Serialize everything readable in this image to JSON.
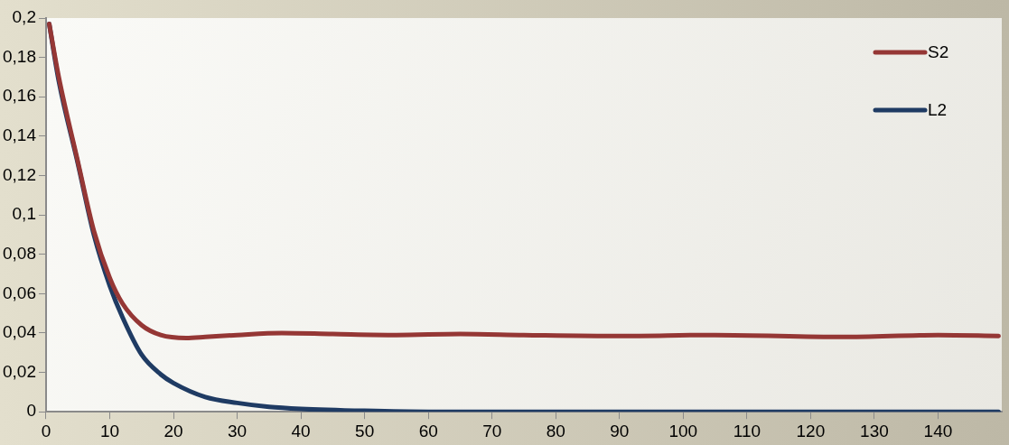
{
  "chart_data": {
    "type": "line",
    "xlim": [
      0,
      150
    ],
    "ylim": [
      0,
      0.2
    ],
    "xticks": [
      0,
      10,
      20,
      30,
      40,
      50,
      60,
      70,
      80,
      90,
      100,
      110,
      120,
      130,
      140
    ],
    "yticks": [
      {
        "value": 0,
        "label": "0"
      },
      {
        "value": 0.02,
        "label": "0,02"
      },
      {
        "value": 0.04,
        "label": "0,04"
      },
      {
        "value": 0.06,
        "label": "0,06"
      },
      {
        "value": 0.08,
        "label": "0,08"
      },
      {
        "value": 0.1,
        "label": "0,1"
      },
      {
        "value": 0.12,
        "label": "0,12"
      },
      {
        "value": 0.14,
        "label": "0,14"
      },
      {
        "value": 0.16,
        "label": "0,16"
      },
      {
        "value": 0.18,
        "label": "0,18"
      },
      {
        "value": 0.2,
        "label": "0,2"
      }
    ],
    "grid": false,
    "legend": "top right",
    "marker": "none",
    "line_style": "solid",
    "series": [
      {
        "name": "S2",
        "color": "#953735",
        "x": [
          0.5,
          2,
          5,
          7.5,
          10,
          12,
          15,
          18,
          22,
          25,
          30,
          37,
          45,
          55,
          65,
          75,
          90,
          105,
          125,
          140,
          149.5
        ],
        "values": [
          0.197,
          0.17,
          0.127,
          0.092,
          0.068,
          0.055,
          0.044,
          0.039,
          0.0375,
          0.038,
          0.039,
          0.04,
          0.0395,
          0.039,
          0.0395,
          0.039,
          0.0385,
          0.039,
          0.038,
          0.039,
          0.0385
        ]
      },
      {
        "name": "L2",
        "color": "#1f3b63",
        "x": [
          0.5,
          2,
          5,
          7.5,
          10,
          12,
          15,
          18,
          20,
          25,
          30,
          35,
          40,
          50,
          60,
          80,
          100,
          120,
          149.5
        ],
        "values": [
          0.197,
          0.168,
          0.126,
          0.09,
          0.064,
          0.048,
          0.029,
          0.019,
          0.0146,
          0.0075,
          0.0045,
          0.0025,
          0.0015,
          0.0005,
          0,
          0,
          0,
          0,
          0
        ]
      }
    ]
  }
}
